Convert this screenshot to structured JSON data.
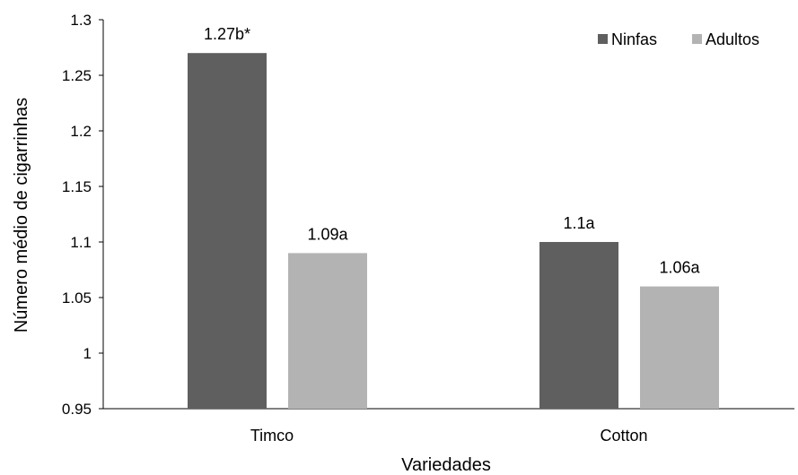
{
  "chart_data": {
    "type": "bar",
    "categories": [
      "Timco",
      "Cotton"
    ],
    "series": [
      {
        "name": "Ninfas",
        "values": [
          1.27,
          1.1
        ],
        "labels": [
          "1.27b*",
          "1.1a"
        ],
        "color": "#5f5f5f"
      },
      {
        "name": "Adultos",
        "values": [
          1.09,
          1.06
        ],
        "labels": [
          "1.09a",
          "1.06a"
        ],
        "color": "#b3b3b3"
      }
    ],
    "xlabel": "Variedades",
    "ylabel": "Número médio de cigarrinhas",
    "ylim": [
      0.95,
      1.3
    ],
    "yticks": [
      "0.95",
      "1",
      "1.05",
      "1.1",
      "1.15",
      "1.2",
      "1.25",
      "1.3"
    ],
    "grid": false,
    "legend_position": "top-right"
  }
}
